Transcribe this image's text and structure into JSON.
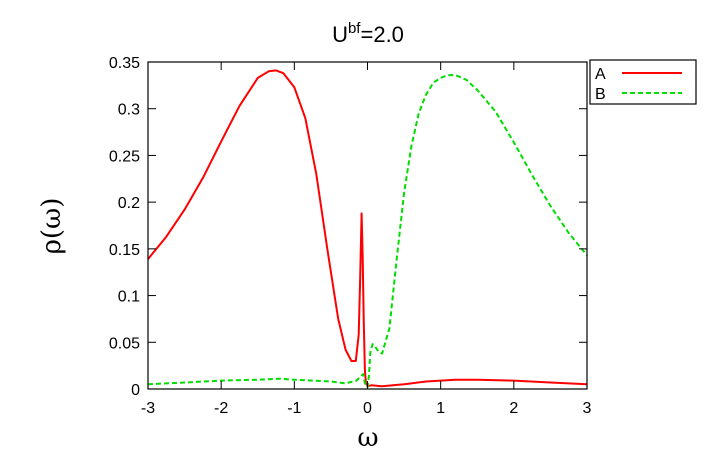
{
  "chart_data": {
    "type": "line",
    "title_base": "U",
    "title_sup": "bf",
    "title_rest": "=2.0",
    "xlabel": "ω",
    "ylabel": "ρ(ω)",
    "xlim": [
      -3,
      3
    ],
    "ylim": [
      0,
      0.35
    ],
    "xticks": [
      "-3",
      "-2",
      "-1",
      "0",
      "1",
      "2",
      "3"
    ],
    "yticks": [
      "0",
      "0.05",
      "0.1",
      "0.15",
      "0.2",
      "0.25",
      "0.3",
      "0.35"
    ],
    "grid": false,
    "legend_position": "outside-top-right",
    "series": [
      {
        "name": "A",
        "color": "#ff0000",
        "dash": "solid",
        "x": [
          -3.0,
          -2.75,
          -2.5,
          -2.25,
          -2.0,
          -1.75,
          -1.5,
          -1.35,
          -1.25,
          -1.15,
          -1.0,
          -0.85,
          -0.7,
          -0.55,
          -0.4,
          -0.3,
          -0.22,
          -0.16,
          -0.12,
          -0.1,
          -0.08,
          -0.065,
          -0.05,
          -0.035,
          -0.02,
          0.0,
          0.05,
          0.2,
          0.5,
          0.8,
          1.2,
          1.5,
          2.0,
          2.5,
          3.0
        ],
        "values": [
          0.139,
          0.163,
          0.192,
          0.226,
          0.265,
          0.303,
          0.333,
          0.34,
          0.341,
          0.338,
          0.323,
          0.29,
          0.23,
          0.15,
          0.075,
          0.042,
          0.03,
          0.03,
          0.058,
          0.12,
          0.188,
          0.14,
          0.07,
          0.02,
          0.006,
          0.003,
          0.004,
          0.003,
          0.005,
          0.008,
          0.01,
          0.01,
          0.009,
          0.007,
          0.005
        ]
      },
      {
        "name": "B",
        "color": "#00dd00",
        "dash": "dashed",
        "x": [
          -3.0,
          -2.5,
          -2.0,
          -1.5,
          -1.2,
          -1.0,
          -0.5,
          -0.3,
          -0.15,
          -0.1,
          -0.06,
          -0.03,
          0.0,
          0.02,
          0.04,
          0.07,
          0.1,
          0.15,
          0.2,
          0.3,
          0.4,
          0.5,
          0.6,
          0.7,
          0.8,
          0.9,
          1.0,
          1.1,
          1.2,
          1.35,
          1.5,
          1.75,
          2.0,
          2.25,
          2.5,
          2.75,
          3.0
        ],
        "values": [
          0.005,
          0.007,
          0.009,
          0.01,
          0.011,
          0.01,
          0.008,
          0.006,
          0.009,
          0.013,
          0.016,
          0.004,
          0.002,
          0.015,
          0.04,
          0.048,
          0.046,
          0.04,
          0.038,
          0.065,
          0.14,
          0.21,
          0.26,
          0.295,
          0.315,
          0.328,
          0.333,
          0.336,
          0.336,
          0.331,
          0.32,
          0.297,
          0.264,
          0.229,
          0.196,
          0.167,
          0.143
        ]
      }
    ]
  }
}
